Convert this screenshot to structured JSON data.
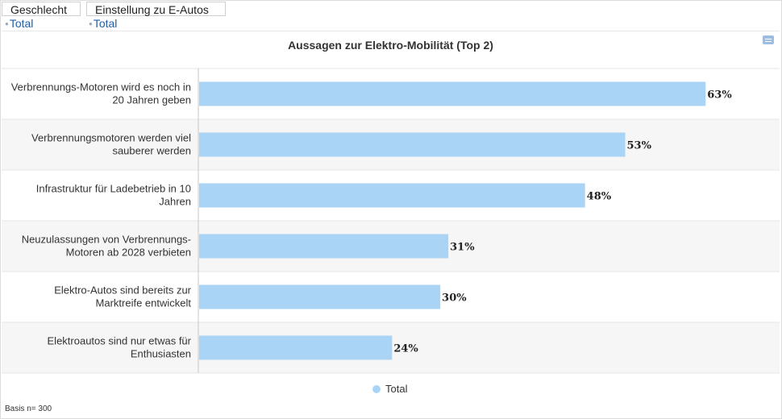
{
  "filters": [
    {
      "label": "Geschlecht",
      "value": "Total"
    },
    {
      "label": "Einstellung zu E-Autos",
      "value": "Total"
    }
  ],
  "colors": {
    "bar": "#aad4f5",
    "band": "#f6f6f6",
    "axis": "#c8c8c8",
    "grid": "#e6e6e6"
  },
  "chart_data": {
    "type": "bar",
    "orientation": "horizontal",
    "title": "Aussagen zur Elektro-Mobilität (Top 2)",
    "categories": [
      [
        "Verbrennungs-Motoren wird es noch in",
        "20 Jahren geben"
      ],
      [
        "Verbrennungsmotoren werden viel",
        "sauberer werden"
      ],
      [
        "Infrastruktur für Ladebetrieb in 10",
        "Jahren"
      ],
      [
        "Neuzulassungen von Verbrennungs-",
        "Motoren ab 2028 verbieten"
      ],
      [
        "Elektro-Autos sind bereits zur",
        "Marktreife entwickelt"
      ],
      [
        "Elektroautos sind nur etwas für",
        "Enthusiasten"
      ]
    ],
    "series": [
      {
        "name": "Total",
        "values": [
          63,
          53,
          48,
          31,
          30,
          24
        ],
        "labels": [
          "63%",
          "53%",
          "48%",
          "31%",
          "30%",
          "24%"
        ]
      }
    ],
    "xlim": [
      0,
      72
    ],
    "legend": "bottom-center",
    "grid": false
  },
  "footer": {
    "basis": "Basis n= 300"
  }
}
